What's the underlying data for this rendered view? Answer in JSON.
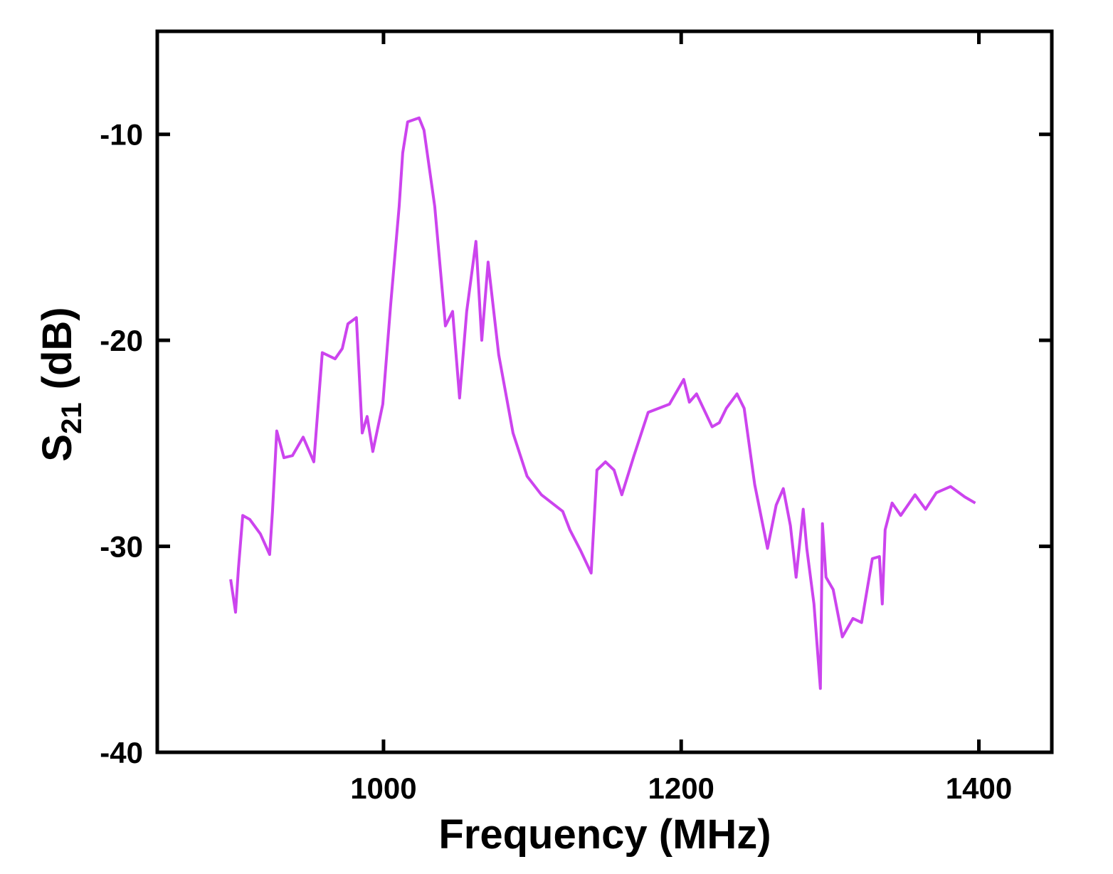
{
  "chart_data": {
    "type": "line",
    "x_label": "Frequency (MHz)",
    "y_label": {
      "main": "S",
      "sub": "21",
      "unit": "(dB)"
    },
    "xlim": [
      848,
      1449
    ],
    "ylim": [
      -40,
      -5
    ],
    "xticks": [
      1000,
      1200,
      1400
    ],
    "yticks": [
      -40,
      -30,
      -20,
      -10
    ],
    "series": [
      {
        "color": "#cc44ee",
        "x": [
          897.3,
          900.6,
          902.5,
          905.4,
          910.2,
          917.3,
          923.5,
          925.4,
          928.3,
          933.1,
          938.8,
          946.0,
          953.2,
          958.9,
          967.5,
          972.3,
          976.1,
          981.8,
          985.7,
          989.0,
          992.8,
          999.5,
          1004.8,
          1010.5,
          1012.9,
          1016.2,
          1023.9,
          1027.2,
          1034.4,
          1041.6,
          1046.4,
          1051.1,
          1055.9,
          1062.1,
          1066.0,
          1070.3,
          1077.4,
          1087.0,
          1096.5,
          1106.1,
          1120.4,
          1125.2,
          1132.4,
          1139.5,
          1143.4,
          1149.1,
          1154.9,
          1160.1,
          1168.3,
          1177.8,
          1192.1,
          1201.7,
          1205.5,
          1210.3,
          1220.8,
          1225.6,
          1230.3,
          1237.5,
          1242.3,
          1249.4,
          1258.0,
          1263.8,
          1268.6,
          1273.4,
          1277.2,
          1282.0,
          1284.4,
          1289.2,
          1293.5,
          1294.9,
          1297.3,
          1302.1,
          1308.3,
          1315.4,
          1321.2,
          1328.4,
          1333.2,
          1335.1,
          1337.0,
          1341.7,
          1347.5,
          1357.1,
          1364.2,
          1371.4,
          1381.0,
          1390.5,
          1397.6
        ],
        "values": [
          -31.6,
          -33.2,
          -31.1,
          -28.5,
          -28.7,
          -29.4,
          -30.4,
          -28.3,
          -24.4,
          -25.7,
          -25.6,
          -24.7,
          -25.9,
          -20.6,
          -20.9,
          -20.4,
          -19.2,
          -18.9,
          -24.5,
          -23.7,
          -25.4,
          -23.1,
          -18.3,
          -13.5,
          -10.9,
          -9.4,
          -9.2,
          -9.8,
          -13.5,
          -19.3,
          -18.6,
          -22.8,
          -18.6,
          -15.2,
          -20.0,
          -16.2,
          -20.7,
          -24.5,
          -26.6,
          -27.5,
          -28.3,
          -29.2,
          -30.2,
          -31.3,
          -26.3,
          -25.9,
          -26.3,
          -27.5,
          -25.6,
          -23.5,
          -23.1,
          -21.9,
          -23.0,
          -22.6,
          -24.2,
          -24.0,
          -23.3,
          -22.6,
          -23.3,
          -27.0,
          -30.1,
          -28.0,
          -27.2,
          -29.0,
          -31.5,
          -28.2,
          -30.1,
          -32.8,
          -36.9,
          -28.9,
          -31.5,
          -32.1,
          -34.4,
          -33.5,
          -33.7,
          -30.6,
          -30.5,
          -32.8,
          -29.2,
          -27.9,
          -28.5,
          -27.5,
          -28.2,
          -27.4,
          -27.1,
          -27.6,
          -27.9
        ]
      }
    ]
  }
}
